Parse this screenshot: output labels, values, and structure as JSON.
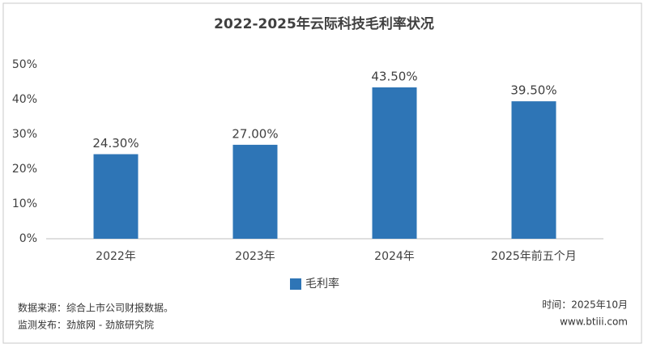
{
  "chart_data": {
    "type": "bar",
    "title": "2022-2025年云际科技毛利率状况",
    "categories": [
      "2022年",
      "2023年",
      "2024年",
      "2025年前五个月"
    ],
    "series": [
      {
        "name": "毛利率",
        "color": "#2e75b6",
        "values": [
          24.3,
          27,
          43.5,
          39.5
        ],
        "value_labels": [
          "24.30%",
          "27.00%",
          "43.50%",
          "39.50%"
        ]
      }
    ],
    "ylim": [
      0,
      50
    ],
    "yticks": [
      {
        "value": 0,
        "label": "0%"
      },
      {
        "value": 10,
        "label": "10%"
      },
      {
        "value": 20,
        "label": "20%"
      },
      {
        "value": 30,
        "label": "30%"
      },
      {
        "value": 40,
        "label": "40%"
      },
      {
        "value": 50,
        "label": "50%"
      }
    ],
    "grid": false,
    "legend": "bottom",
    "annotations": [
      "数据来源：综合上市公司财报数据。",
      "监测发布：劲旅网 - 劲旅研究院",
      "时间：2025年10月",
      "www.btiii.com"
    ]
  }
}
